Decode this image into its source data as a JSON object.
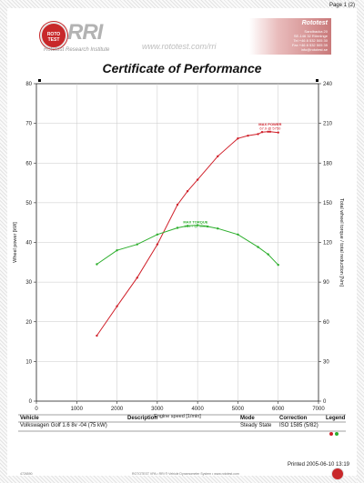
{
  "page": {
    "page_number": "Page 1 (2)"
  },
  "header": {
    "logo_brand": "RRI",
    "logo_badge": "ROTO TEST",
    "logo_subtitle": "Rototest Research Institute",
    "url": "www.rototest.com/rri",
    "company": "Rototest",
    "address_lines": [
      "Sandbacka 20",
      "SE-146 32 Rönninge",
      "Tel +46 8 532 505 30",
      "Fax +46 8 532 505 35",
      "info@rototest.se"
    ]
  },
  "title": "Certificate of Performance",
  "chart_data": {
    "type": "line",
    "xlabel": "Engine speed [1/min]",
    "ylabel_left": "Wheel power [kW]",
    "ylabel_right": "Total wheel torque / total reduction [Nm]",
    "xlim": [
      0,
      7000
    ],
    "ylim_left": [
      0,
      80
    ],
    "ylim_right": [
      0,
      240
    ],
    "x_ticks": [
      0,
      1000,
      2000,
      3000,
      4000,
      5000,
      6000,
      7000
    ],
    "y_ticks_left": [
      0,
      10,
      20,
      30,
      40,
      50,
      60,
      70,
      80
    ],
    "y_ticks_right": [
      0,
      30,
      60,
      90,
      120,
      150,
      180,
      210,
      240
    ],
    "grid": true,
    "series": [
      {
        "axis": "left",
        "color": "#d0202a",
        "x": [
          1500,
          2000,
          2500,
          3000,
          3500,
          3750,
          4000,
          4500,
          5000,
          5250,
          5500,
          5600,
          5750,
          5800,
          6000
        ],
        "y": [
          16.5,
          23.9,
          31.1,
          39.5,
          49.5,
          52.9,
          55.8,
          61.7,
          66.2,
          66.9,
          67.3,
          67.8,
          67.9,
          67.9,
          67.7
        ]
      },
      {
        "axis": "right",
        "color": "#2cae2c",
        "x": [
          1500,
          2000,
          2500,
          3000,
          3500,
          3750,
          4000,
          4250,
          4500,
          5000,
          5500,
          5750,
          6000
        ],
        "y": [
          103.5,
          114,
          118.5,
          126,
          131,
          132.5,
          133,
          132,
          130.5,
          126,
          116.5,
          111,
          103
        ]
      }
    ],
    "annotations": [
      {
        "text": "MAX POWER",
        "text2": "67.9 @ 5750",
        "color": "#d0202a",
        "x": 5800,
        "y_left": 69.5
      },
      {
        "text": "MAX TORQUE",
        "text2": "133.7 @ 4000",
        "color": "#2cae2c",
        "x": 3950,
        "y_left": 44.8
      }
    ]
  },
  "info": {
    "headers": {
      "vehicle": "Vehicle",
      "description": "Description",
      "mode": "Mode",
      "correction": "Correction",
      "legend": "Legend"
    },
    "values": {
      "vehicle": "Volkswagen Golf 1.6 8v -04 (75 kW)",
      "description": "",
      "mode": "Steady State",
      "correction": "ISO 1585 (5/82)"
    },
    "legend_colors": [
      "#d0202a",
      "#2cae2c"
    ]
  },
  "footer": {
    "printed": "Printed 2005-06-10 13:19",
    "code": "4726590",
    "note": "ROTOTEST VPA • RRI ® Vehicle Dynamometer System • www.rototest.com"
  }
}
